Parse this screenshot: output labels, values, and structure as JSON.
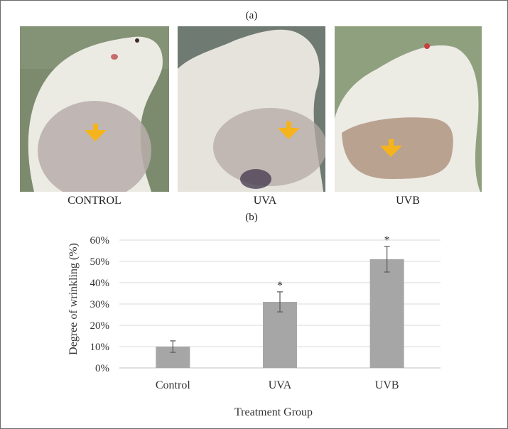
{
  "panel_a": {
    "label": "(a)",
    "photos": [
      {
        "caption": "CONTROL"
      },
      {
        "caption": "UVA"
      },
      {
        "caption": "UVB"
      }
    ]
  },
  "panel_b": {
    "label": "(b)"
  },
  "colors": {
    "bar": "#a6a6a6",
    "grid": "#d9d9d9",
    "arrow": "#f6b41c",
    "photo_bg_left": "#7c8b6e",
    "photo_bg_mid": "#6f7b72",
    "photo_bg_right": "#8fa07f",
    "fur": "#ebeae3"
  },
  "chart_data": {
    "type": "bar",
    "title": "",
    "xlabel": "Treatment Group",
    "ylabel": "Degree of wrinkling (%)",
    "categories": [
      "Control",
      "UVA",
      "UVB"
    ],
    "values": [
      10,
      31,
      51
    ],
    "errors": [
      2.7,
      4.7,
      6
    ],
    "significance": [
      "",
      "*",
      "*"
    ],
    "ylim": [
      0,
      60
    ],
    "yticks": [
      0,
      10,
      20,
      30,
      40,
      50,
      60
    ],
    "ytick_labels": [
      "0%",
      "10%",
      "20%",
      "30%",
      "40%",
      "50%",
      "60%"
    ],
    "grid": true
  }
}
